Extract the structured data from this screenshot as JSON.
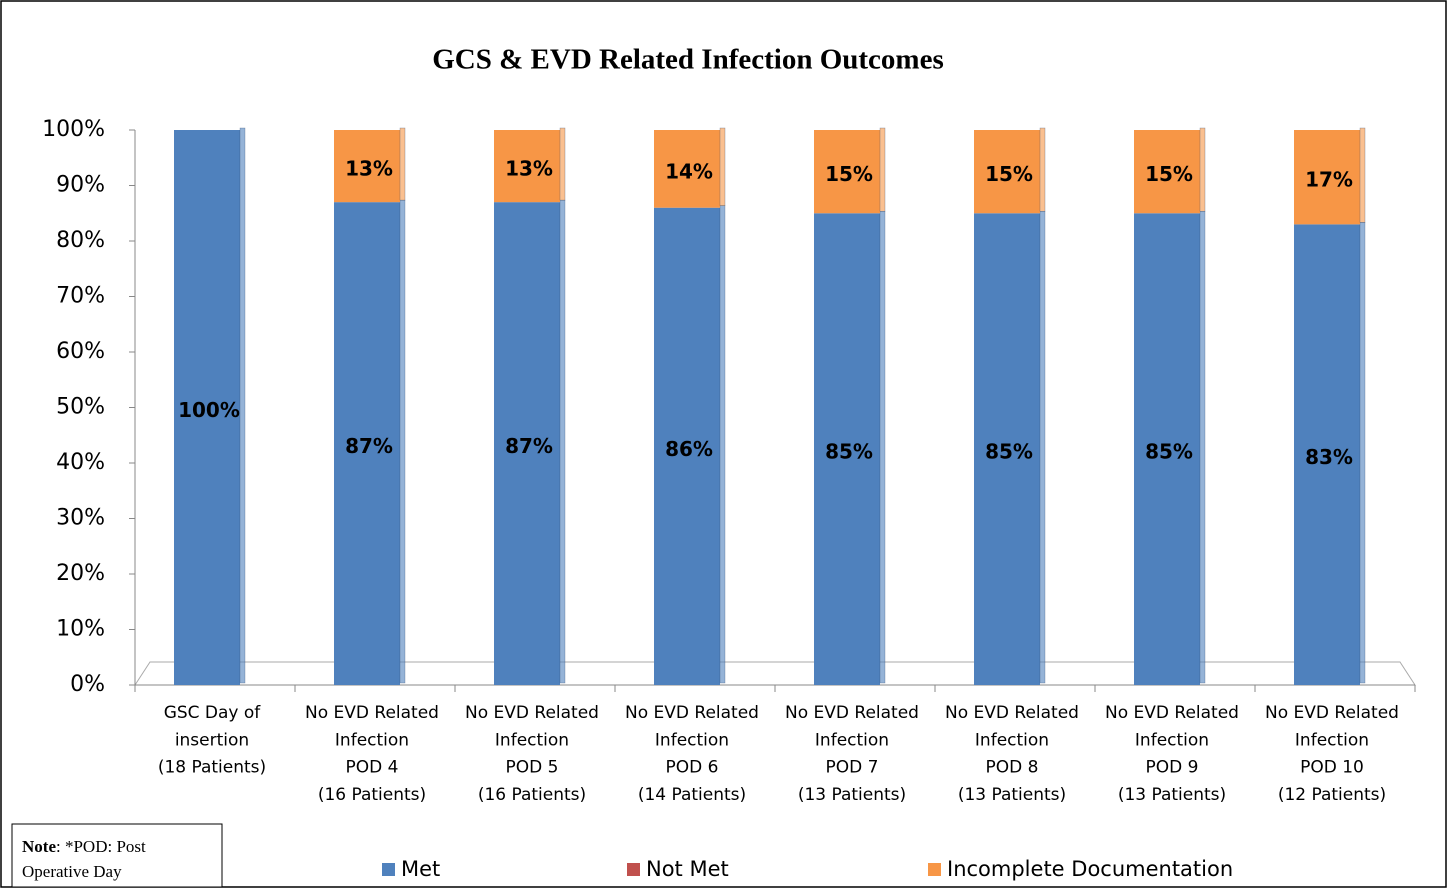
{
  "chart_data": {
    "type": "stacked_bar",
    "title": "GCS & EVD Related Infection Outcomes",
    "categories": [
      [
        "GSC Day of",
        "insertion",
        "(18 Patients)"
      ],
      [
        "No EVD Related",
        "Infection",
        "POD 4",
        "(16 Patients)"
      ],
      [
        "No EVD Related",
        "Infection",
        "POD 5",
        "(16 Patients)"
      ],
      [
        "No EVD Related",
        "Infection",
        "POD 6",
        "(14 Patients)"
      ],
      [
        "No EVD Related",
        "Infection",
        "POD 7",
        "(13 Patients)"
      ],
      [
        "No EVD Related",
        "Infection",
        "POD 8",
        "(13 Patients)"
      ],
      [
        "No EVD Related",
        "Infection",
        "POD 9",
        "(13 Patients)"
      ],
      [
        "No EVD Related",
        "Infection",
        "POD 10",
        "(12 Patients)"
      ]
    ],
    "series": [
      {
        "name": "Met",
        "color": "#4f81bd",
        "values": [
          100,
          87,
          87,
          86,
          85,
          85,
          85,
          83
        ],
        "value_labels": [
          "100%",
          "87%",
          "87%",
          "86%",
          "85%",
          "85%",
          "85%",
          "83%"
        ]
      },
      {
        "name": "Not Met",
        "color": "#c0504d",
        "values": [
          0,
          0,
          0,
          0,
          0,
          0,
          0,
          0
        ]
      },
      {
        "name": "Incomplete Documentation",
        "color": "#f79646",
        "values": [
          0,
          13,
          13,
          14,
          15,
          15,
          15,
          17
        ],
        "value_labels": [
          null,
          "13%",
          "13%",
          "14%",
          "15%",
          "15%",
          "15%",
          "17%"
        ]
      }
    ],
    "ylim": [
      0,
      100
    ],
    "yticks": [
      {
        "value": 0,
        "label": "0%"
      },
      {
        "value": 10,
        "label": "10%"
      },
      {
        "value": 20,
        "label": "20%"
      },
      {
        "value": 30,
        "label": "30%"
      },
      {
        "value": 40,
        "label": "40%"
      },
      {
        "value": 50,
        "label": "50%"
      },
      {
        "value": 60,
        "label": "60%"
      },
      {
        "value": 70,
        "label": "70%"
      },
      {
        "value": 80,
        "label": "80%"
      },
      {
        "value": 90,
        "label": "90%"
      },
      {
        "value": 100,
        "label": "100%"
      }
    ],
    "legend": "bottom",
    "note": {
      "label": "Note",
      "text": ": *POD: Post Operative Day"
    }
  }
}
